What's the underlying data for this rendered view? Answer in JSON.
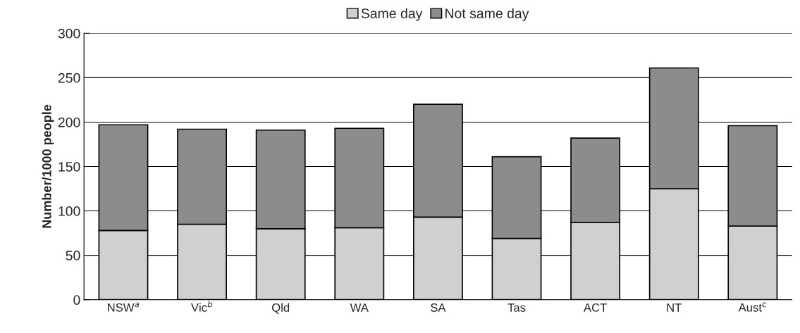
{
  "chart_data": {
    "type": "bar",
    "stacked": true,
    "ylabel": "Number/1000 people",
    "categories": [
      "NSW$^{a}$",
      "Vic$^{b}$",
      "Qld",
      "WA",
      "SA",
      "Tas",
      "ACT",
      "NT",
      "Aust$^{c}$"
    ],
    "series": [
      {
        "name": "Same day",
        "color": "#d0d0d0",
        "values": [
          78,
          85,
          80,
          81,
          93,
          69,
          87,
          125,
          83
        ]
      },
      {
        "name": "Not same day",
        "color": "#8c8c8c",
        "values": [
          119,
          107,
          111,
          112,
          127,
          92,
          95,
          136,
          113
        ]
      }
    ],
    "ylim": [
      0,
      300
    ],
    "yticks": [
      0,
      50,
      100,
      150,
      200,
      250,
      300
    ],
    "grid": "y",
    "legend": "top"
  }
}
